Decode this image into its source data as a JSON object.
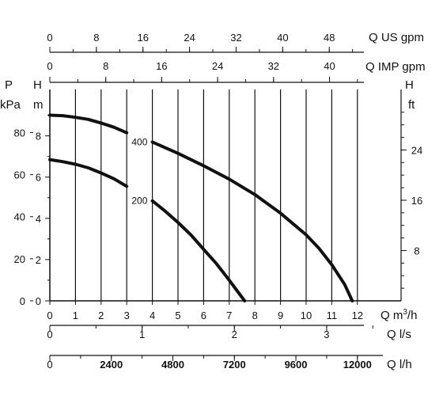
{
  "chart_data": {
    "type": "line",
    "title": "",
    "grid": true,
    "x_primary": {
      "label": "Q m³/h",
      "label_base": "Q m",
      "label_sup": "3",
      "label_tail": "/h",
      "range": [
        0,
        12
      ],
      "ticks": [
        "0",
        "1",
        "2",
        "3",
        "4",
        "5",
        "6",
        "7",
        "8",
        "9",
        "10",
        "11",
        "12"
      ]
    },
    "x_secondary": [
      {
        "label": "Q US gpm",
        "ticks": [
          "0",
          "8",
          "16",
          "24",
          "32",
          "40",
          "48"
        ],
        "values": [
          0,
          8,
          16,
          24,
          32,
          40,
          48
        ]
      },
      {
        "label": "Q IMP gpm",
        "ticks": [
          "0",
          "8",
          "16",
          "24",
          "32",
          "40"
        ],
        "values": [
          0,
          8,
          16,
          24,
          32,
          40
        ]
      },
      {
        "label": "Q l/s",
        "ticks": [
          "0",
          "1",
          "2",
          "3"
        ],
        "values": [
          0,
          1,
          2,
          3
        ]
      },
      {
        "label": "Q l/h",
        "ticks": [
          "0",
          "2400",
          "4800",
          "7200",
          "9600",
          "12000"
        ],
        "values": [
          0,
          2400,
          4800,
          7200,
          9600,
          12000
        ]
      }
    ],
    "y_primary": {
      "label": "H",
      "unit": "m",
      "range": [
        0,
        10
      ],
      "ticks": [
        "0",
        "2",
        "4",
        "6",
        "8"
      ]
    },
    "y_secondary_left": {
      "label": "P",
      "unit": "kPa",
      "ticks": [
        "0",
        "20",
        "40",
        "60",
        "80"
      ],
      "values": [
        0,
        20,
        40,
        60,
        80
      ]
    },
    "y_secondary_right": {
      "label": "H",
      "unit": "ft",
      "ticks": [
        "8",
        "16",
        "24"
      ],
      "values": [
        8,
        16,
        24
      ]
    },
    "series": [
      {
        "name": "400",
        "x": [
          0,
          0.5,
          1,
          1.5,
          2,
          2.5,
          3,
          4,
          5,
          6,
          7,
          8,
          9,
          10,
          10.5,
          11,
          11.5,
          11.8
        ],
        "y": [
          9.0,
          8.98,
          8.9,
          8.8,
          8.62,
          8.42,
          8.15,
          7.7,
          7.15,
          6.55,
          5.9,
          5.15,
          4.25,
          3.2,
          2.55,
          1.75,
          0.8,
          0
        ]
      },
      {
        "name": "200",
        "x": [
          0,
          0.5,
          1,
          1.5,
          2,
          2.5,
          3,
          4,
          4.5,
          5,
          5.5,
          6,
          6.5,
          7,
          7.3,
          7.6
        ],
        "y": [
          6.85,
          6.75,
          6.62,
          6.45,
          6.2,
          5.92,
          5.55,
          4.85,
          4.35,
          3.8,
          3.2,
          2.5,
          1.8,
          1.0,
          0.5,
          0
        ]
      }
    ]
  }
}
